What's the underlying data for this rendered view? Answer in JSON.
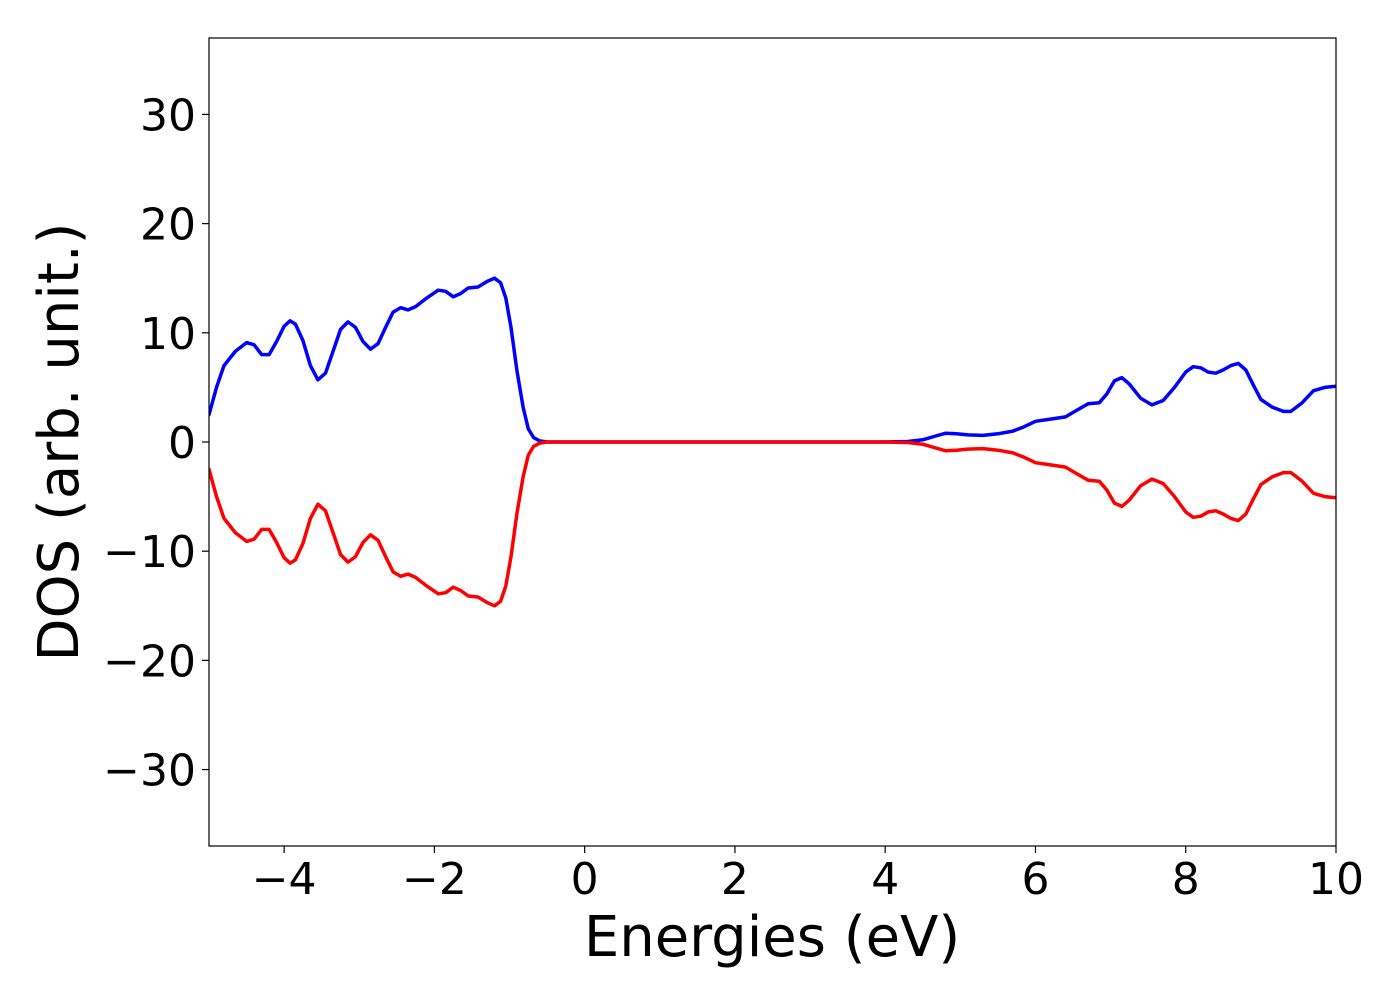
{
  "chart_data": {
    "type": "line",
    "xlabel": "Energies (eV)",
    "ylabel": "DOS (arb. unit.)",
    "xlim": [
      -5,
      10
    ],
    "ylim": [
      -37,
      37
    ],
    "xticks": [
      -4,
      -2,
      0,
      2,
      4,
      6,
      8,
      10
    ],
    "xtick_labels": [
      "−4",
      "−2",
      "0",
      "2",
      "4",
      "6",
      "8",
      "10"
    ],
    "yticks": [
      -30,
      -20,
      -10,
      0,
      10,
      20,
      30
    ],
    "ytick_labels": [
      "−30",
      "−20",
      "−10",
      "0",
      "10",
      "20",
      "30"
    ],
    "grid": false,
    "series": [
      {
        "color": "#0000ff",
        "points": [
          [
            -5.0,
            2.5
          ],
          [
            -4.9,
            5.0
          ],
          [
            -4.8,
            7.0
          ],
          [
            -4.65,
            8.3
          ],
          [
            -4.5,
            9.1
          ],
          [
            -4.4,
            8.9
          ],
          [
            -4.3,
            8.0
          ],
          [
            -4.2,
            8.0
          ],
          [
            -4.1,
            9.2
          ],
          [
            -4.0,
            10.6
          ],
          [
            -3.92,
            11.1
          ],
          [
            -3.85,
            10.8
          ],
          [
            -3.75,
            9.3
          ],
          [
            -3.65,
            7.0
          ],
          [
            -3.55,
            5.7
          ],
          [
            -3.45,
            6.3
          ],
          [
            -3.35,
            8.3
          ],
          [
            -3.25,
            10.3
          ],
          [
            -3.15,
            11.0
          ],
          [
            -3.05,
            10.5
          ],
          [
            -2.95,
            9.2
          ],
          [
            -2.85,
            8.5
          ],
          [
            -2.75,
            9.0
          ],
          [
            -2.65,
            10.5
          ],
          [
            -2.55,
            11.9
          ],
          [
            -2.45,
            12.3
          ],
          [
            -2.35,
            12.1
          ],
          [
            -2.25,
            12.4
          ],
          [
            -2.1,
            13.2
          ],
          [
            -1.95,
            13.9
          ],
          [
            -1.85,
            13.8
          ],
          [
            -1.75,
            13.3
          ],
          [
            -1.65,
            13.6
          ],
          [
            -1.55,
            14.1
          ],
          [
            -1.42,
            14.2
          ],
          [
            -1.3,
            14.7
          ],
          [
            -1.2,
            15.0
          ],
          [
            -1.12,
            14.6
          ],
          [
            -1.05,
            13.2
          ],
          [
            -0.98,
            10.5
          ],
          [
            -0.9,
            6.5
          ],
          [
            -0.82,
            3.2
          ],
          [
            -0.75,
            1.2
          ],
          [
            -0.68,
            0.4
          ],
          [
            -0.6,
            0.1
          ],
          [
            -0.5,
            0.0
          ],
          [
            0.0,
            0.0
          ],
          [
            1.0,
            0.0
          ],
          [
            2.0,
            0.0
          ],
          [
            3.0,
            0.0
          ],
          [
            4.0,
            0.0
          ],
          [
            4.3,
            0.05
          ],
          [
            4.5,
            0.2
          ],
          [
            4.65,
            0.5
          ],
          [
            4.8,
            0.8
          ],
          [
            4.95,
            0.75
          ],
          [
            5.1,
            0.65
          ],
          [
            5.3,
            0.6
          ],
          [
            5.5,
            0.75
          ],
          [
            5.7,
            1.0
          ],
          [
            5.85,
            1.4
          ],
          [
            6.0,
            1.9
          ],
          [
            6.2,
            2.1
          ],
          [
            6.4,
            2.3
          ],
          [
            6.55,
            2.9
          ],
          [
            6.7,
            3.5
          ],
          [
            6.85,
            3.6
          ],
          [
            6.95,
            4.4
          ],
          [
            7.05,
            5.6
          ],
          [
            7.15,
            5.9
          ],
          [
            7.25,
            5.3
          ],
          [
            7.4,
            4.0
          ],
          [
            7.55,
            3.4
          ],
          [
            7.7,
            3.8
          ],
          [
            7.85,
            5.0
          ],
          [
            8.0,
            6.4
          ],
          [
            8.1,
            6.9
          ],
          [
            8.2,
            6.8
          ],
          [
            8.3,
            6.4
          ],
          [
            8.4,
            6.3
          ],
          [
            8.5,
            6.6
          ],
          [
            8.6,
            7.0
          ],
          [
            8.7,
            7.2
          ],
          [
            8.8,
            6.6
          ],
          [
            8.9,
            5.2
          ],
          [
            9.0,
            3.9
          ],
          [
            9.15,
            3.2
          ],
          [
            9.3,
            2.8
          ],
          [
            9.4,
            2.8
          ],
          [
            9.55,
            3.6
          ],
          [
            9.7,
            4.7
          ],
          [
            9.85,
            5.0
          ],
          [
            10.0,
            5.1
          ]
        ]
      },
      {
        "color": "#ff0000",
        "points": [
          [
            -5.0,
            -2.5
          ],
          [
            -4.9,
            -5.0
          ],
          [
            -4.8,
            -7.0
          ],
          [
            -4.65,
            -8.3
          ],
          [
            -4.5,
            -9.1
          ],
          [
            -4.4,
            -8.9
          ],
          [
            -4.3,
            -8.0
          ],
          [
            -4.2,
            -8.0
          ],
          [
            -4.1,
            -9.2
          ],
          [
            -4.0,
            -10.6
          ],
          [
            -3.92,
            -11.1
          ],
          [
            -3.85,
            -10.8
          ],
          [
            -3.75,
            -9.3
          ],
          [
            -3.65,
            -7.0
          ],
          [
            -3.55,
            -5.7
          ],
          [
            -3.45,
            -6.3
          ],
          [
            -3.35,
            -8.3
          ],
          [
            -3.25,
            -10.3
          ],
          [
            -3.15,
            -11.0
          ],
          [
            -3.05,
            -10.5
          ],
          [
            -2.95,
            -9.2
          ],
          [
            -2.85,
            -8.5
          ],
          [
            -2.75,
            -9.0
          ],
          [
            -2.65,
            -10.5
          ],
          [
            -2.55,
            -11.9
          ],
          [
            -2.45,
            -12.3
          ],
          [
            -2.35,
            -12.1
          ],
          [
            -2.25,
            -12.4
          ],
          [
            -2.1,
            -13.2
          ],
          [
            -1.95,
            -13.9
          ],
          [
            -1.85,
            -13.8
          ],
          [
            -1.75,
            -13.3
          ],
          [
            -1.65,
            -13.6
          ],
          [
            -1.55,
            -14.1
          ],
          [
            -1.42,
            -14.2
          ],
          [
            -1.3,
            -14.7
          ],
          [
            -1.2,
            -15.0
          ],
          [
            -1.12,
            -14.6
          ],
          [
            -1.05,
            -13.2
          ],
          [
            -0.98,
            -10.5
          ],
          [
            -0.9,
            -6.5
          ],
          [
            -0.82,
            -3.2
          ],
          [
            -0.75,
            -1.2
          ],
          [
            -0.68,
            -0.4
          ],
          [
            -0.6,
            -0.1
          ],
          [
            -0.5,
            0.0
          ],
          [
            0.0,
            0.0
          ],
          [
            1.0,
            0.0
          ],
          [
            2.0,
            0.0
          ],
          [
            3.0,
            0.0
          ],
          [
            4.0,
            0.0
          ],
          [
            4.3,
            -0.05
          ],
          [
            4.5,
            -0.2
          ],
          [
            4.65,
            -0.5
          ],
          [
            4.8,
            -0.8
          ],
          [
            4.95,
            -0.75
          ],
          [
            5.1,
            -0.65
          ],
          [
            5.3,
            -0.6
          ],
          [
            5.5,
            -0.75
          ],
          [
            5.7,
            -1.0
          ],
          [
            5.85,
            -1.4
          ],
          [
            6.0,
            -1.9
          ],
          [
            6.2,
            -2.1
          ],
          [
            6.4,
            -2.3
          ],
          [
            6.55,
            -2.9
          ],
          [
            6.7,
            -3.5
          ],
          [
            6.85,
            -3.6
          ],
          [
            6.95,
            -4.4
          ],
          [
            7.05,
            -5.6
          ],
          [
            7.15,
            -5.9
          ],
          [
            7.25,
            -5.3
          ],
          [
            7.4,
            -4.0
          ],
          [
            7.55,
            -3.4
          ],
          [
            7.7,
            -3.8
          ],
          [
            7.85,
            -5.0
          ],
          [
            8.0,
            -6.4
          ],
          [
            8.1,
            -6.9
          ],
          [
            8.2,
            -6.8
          ],
          [
            8.3,
            -6.4
          ],
          [
            8.4,
            -6.3
          ],
          [
            8.5,
            -6.6
          ],
          [
            8.6,
            -7.0
          ],
          [
            8.7,
            -7.2
          ],
          [
            8.8,
            -6.6
          ],
          [
            8.9,
            -5.2
          ],
          [
            9.0,
            -3.9
          ],
          [
            9.15,
            -3.2
          ],
          [
            9.3,
            -2.8
          ],
          [
            9.4,
            -2.8
          ],
          [
            9.55,
            -3.6
          ],
          [
            9.7,
            -4.7
          ],
          [
            9.85,
            -5.0
          ],
          [
            10.0,
            -5.1
          ]
        ]
      }
    ]
  }
}
